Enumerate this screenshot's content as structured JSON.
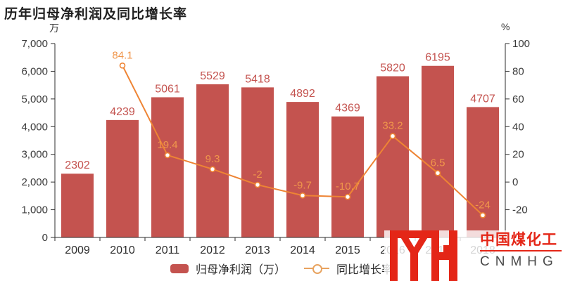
{
  "header": {
    "title": "历年归母净利润及同比增长率"
  },
  "chart_data": {
    "type": "bar",
    "subtype": "bar-line-combo",
    "title": "历年归母净利润及同比增长率",
    "categories": [
      "2009",
      "2010",
      "2011",
      "2012",
      "2013",
      "2014",
      "2015",
      "2016",
      "2017",
      "2018"
    ],
    "series": [
      {
        "name": "归母净利润（万）",
        "type": "bar",
        "axis": "left",
        "color": "#c4534f",
        "values": [
          2302,
          4239,
          5061,
          5529,
          5418,
          4892,
          4369,
          5820,
          6195,
          4707
        ]
      },
      {
        "name": "同比增长率",
        "type": "line",
        "axis": "right",
        "color": "#ee8434",
        "label_color": "#f0964b",
        "values": [
          null,
          84.1,
          19.4,
          9.3,
          -2,
          -9.7,
          -10.7,
          33.2,
          6.5,
          -24
        ]
      }
    ],
    "left_axis": {
      "unit": "万",
      "min": 0,
      "max": 7000,
      "ticks": [
        0,
        1000,
        2000,
        3000,
        4000,
        5000,
        6000,
        7000
      ],
      "tick_labels": [
        "0",
        "1,000",
        "2,000",
        "3,000",
        "4,000",
        "5,000",
        "6,000",
        "7,000"
      ]
    },
    "right_axis": {
      "unit": "%",
      "min": -40,
      "max": 100,
      "ticks": [
        -20,
        0,
        20,
        40,
        60,
        80,
        100
      ],
      "tick_labels": [
        "-20",
        "0",
        "20",
        "40",
        "60",
        "80",
        "100"
      ]
    },
    "grid": false,
    "legend_position": "bottom"
  },
  "legend": {
    "items": [
      {
        "label": "归母净利润（万）",
        "type": "bar",
        "color": "#c4534f"
      },
      {
        "label": "同比增长率",
        "type": "line",
        "color": "#e8a35f"
      }
    ]
  },
  "watermark": {
    "monogram": "MH",
    "name_cn": "中国煤化工",
    "name_en": "CNMHG",
    "accent": "#e42617"
  },
  "colors": {
    "axis_line": "#2e2e2e",
    "axis_text": "#3a3a3a",
    "category_text": "#2d2d2d"
  }
}
